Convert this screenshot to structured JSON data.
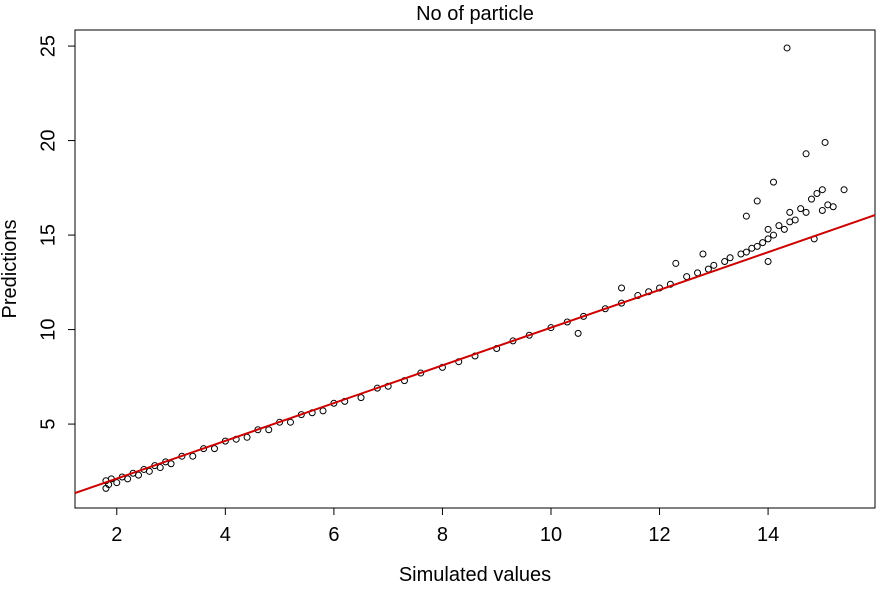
{
  "chart_data": {
    "type": "scatter",
    "title": "No of particle",
    "x_label": "Simulated values",
    "y_label": "Predictions",
    "xlim": [
      1.23,
      15.97
    ],
    "ylim": [
      0.56,
      25.85
    ],
    "xticks": [
      2,
      4,
      6,
      8,
      10,
      12,
      14
    ],
    "yticks": [
      5,
      10,
      15,
      20,
      25
    ],
    "color": "#000000",
    "x": [
      1.8,
      1.8,
      1.85,
      1.9,
      2.0,
      2.1,
      2.2,
      2.3,
      2.4,
      2.5,
      2.6,
      2.7,
      2.8,
      2.9,
      3.0,
      3.2,
      3.4,
      3.6,
      3.8,
      4.0,
      4.2,
      4.4,
      4.6,
      4.8,
      5.0,
      5.2,
      5.4,
      5.6,
      5.8,
      6.0,
      6.2,
      6.5,
      6.8,
      7.0,
      7.3,
      7.6,
      8.0,
      8.3,
      8.6,
      9.0,
      9.3,
      9.6,
      10.0,
      10.3,
      10.6,
      11.0,
      11.3,
      11.6,
      11.8,
      12.0,
      12.2,
      12.5,
      12.7,
      12.9,
      13.0,
      13.2,
      13.3,
      13.5,
      13.6,
      13.7,
      13.8,
      13.9,
      14.0,
      14.0,
      14.1,
      14.2,
      14.3,
      14.4,
      14.4,
      14.5,
      14.6,
      14.7,
      14.8,
      14.9,
      15.0,
      15.0,
      15.1,
      15.2,
      15.4,
      14.35,
      15.05,
      14.7,
      14.1,
      13.8,
      13.6,
      12.8,
      12.3,
      11.3,
      14.0,
      14.85,
      10.5
    ],
    "values": [
      1.6,
      2.0,
      1.8,
      2.1,
      1.9,
      2.2,
      2.1,
      2.4,
      2.3,
      2.6,
      2.5,
      2.8,
      2.7,
      3.0,
      2.9,
      3.3,
      3.3,
      3.7,
      3.7,
      4.1,
      4.2,
      4.3,
      4.7,
      4.7,
      5.1,
      5.1,
      5.5,
      5.6,
      5.7,
      6.1,
      6.2,
      6.4,
      6.9,
      7.0,
      7.3,
      7.7,
      8.0,
      8.3,
      8.6,
      9.0,
      9.4,
      9.7,
      10.1,
      10.4,
      10.7,
      11.1,
      11.4,
      11.8,
      12.0,
      12.2,
      12.4,
      12.8,
      13.0,
      13.2,
      13.4,
      13.6,
      13.8,
      14.0,
      14.1,
      14.3,
      14.4,
      14.6,
      14.8,
      15.3,
      15.0,
      15.5,
      15.3,
      15.7,
      16.2,
      15.8,
      16.4,
      16.2,
      16.9,
      17.2,
      16.3,
      17.4,
      16.6,
      16.5,
      17.4,
      24.9,
      19.9,
      19.3,
      17.8,
      16.8,
      16.0,
      14.0,
      13.5,
      12.2,
      13.6,
      14.8,
      9.8
    ],
    "fit_line": {
      "color": "#cc0000",
      "x": [
        1.23,
        15.97
      ],
      "values": [
        1.35,
        16.06
      ]
    }
  }
}
